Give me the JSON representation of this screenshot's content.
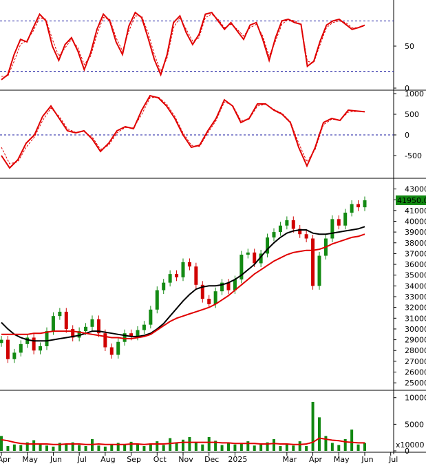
{
  "chart_data": [
    {
      "type": "line",
      "panel": "stochastic",
      "ylim": [
        0,
        100
      ],
      "yticks": [
        "50",
        "0"
      ],
      "reference_lines": [
        80,
        20
      ],
      "colors": {
        "main": "#e00000",
        "signal": "#e00000",
        "reference": "#1a1aa0"
      },
      "series": [
        {
          "style": "solid",
          "values": [
            10,
            16,
            40,
            58,
            55,
            72,
            88,
            80,
            50,
            33,
            52,
            60,
            44,
            22,
            42,
            70,
            88,
            80,
            55,
            40,
            74,
            90,
            84,
            60,
            34,
            16,
            40,
            78,
            86,
            66,
            52,
            64,
            88,
            90,
            80,
            70,
            78,
            68,
            58,
            75,
            78,
            58,
            33,
            60,
            80,
            82,
            78,
            76,
            26,
            32,
            56,
            75,
            80,
            82,
            76,
            70,
            72,
            75
          ]
        },
        {
          "style": "dashed",
          "values": [
            14,
            14,
            32,
            52,
            57,
            68,
            84,
            82,
            58,
            38,
            48,
            58,
            48,
            28,
            38,
            64,
            84,
            82,
            60,
            44,
            68,
            86,
            86,
            66,
            40,
            20,
            36,
            72,
            84,
            70,
            56,
            60,
            84,
            88,
            82,
            72,
            76,
            70,
            62,
            72,
            76,
            62,
            38,
            56,
            76,
            82,
            80,
            76,
            32,
            30,
            52,
            72,
            78,
            80,
            78,
            72,
            72,
            74
          ]
        }
      ]
    },
    {
      "type": "line",
      "panel": "oscillator",
      "ylim": [
        -1000,
        1000
      ],
      "yticks": [
        "1000",
        "500",
        "0",
        "-500"
      ],
      "reference_lines": [
        0
      ],
      "colors": {
        "main": "#e00000",
        "signal": "#e00000",
        "reference": "#1a1aa0"
      },
      "series": [
        {
          "style": "solid",
          "values": [
            -500,
            -800,
            -600,
            -200,
            0,
            450,
            700,
            400,
            100,
            50,
            100,
            -100,
            -400,
            -200,
            100,
            200,
            150,
            600,
            950,
            900,
            700,
            400,
            0,
            -300,
            -250,
            100,
            400,
            850,
            700,
            300,
            400,
            750,
            750,
            600,
            500,
            300,
            -300,
            -750,
            -300,
            300,
            400,
            350,
            600,
            580,
            560
          ]
        },
        {
          "style": "dashed",
          "values": [
            -300,
            -700,
            -650,
            -300,
            -50,
            350,
            650,
            450,
            150,
            60,
            80,
            -50,
            -350,
            -250,
            50,
            180,
            170,
            500,
            900,
            920,
            750,
            450,
            50,
            -250,
            -280,
            50,
            350,
            800,
            720,
            350,
            380,
            700,
            740,
            620,
            520,
            320,
            -200,
            -650,
            -350,
            250,
            380,
            360,
            550,
            570,
            565
          ]
        }
      ]
    },
    {
      "type": "candlestick",
      "panel": "price",
      "ylim": [
        24500,
        43800
      ],
      "yticks": [
        "43000",
        "42000",
        "41000",
        "40000",
        "39000",
        "38000",
        "37000",
        "36000",
        "35000",
        "34000",
        "33000",
        "32000",
        "31000",
        "30000",
        "29000",
        "28000",
        "27000",
        "26000",
        "25000"
      ],
      "last_price_label": "41950.00",
      "colors": {
        "up": "#138a13",
        "down": "#d00000",
        "ma_fast": "#000000",
        "ma_slow": "#e00000",
        "price_tag_bg": "#118811",
        "price_tag_text": "#ffffff"
      },
      "close": [
        29000,
        27200,
        27800,
        28600,
        29200,
        28000,
        28400,
        29800,
        31200,
        31600,
        30000,
        29200,
        29800,
        30200,
        30900,
        29600,
        28300,
        27600,
        28800,
        29600,
        29300,
        29900,
        30400,
        31800,
        33600,
        34300,
        35100,
        34800,
        36200,
        35800,
        34100,
        32800,
        32300,
        33500,
        34300,
        33600,
        34600,
        36900,
        37100,
        36100,
        37000,
        38500,
        39000,
        39600,
        40100,
        39300,
        38800,
        38400,
        34000,
        36800,
        38400,
        40200,
        39600,
        40800,
        41600,
        41300,
        41950
      ],
      "ma_fast": [
        30600,
        30000,
        29500,
        29200,
        29000,
        28900,
        28900,
        28900,
        29000,
        29100,
        29200,
        29300,
        29400,
        29600,
        29800,
        29800,
        29700,
        29600,
        29500,
        29400,
        29300,
        29300,
        29400,
        29600,
        30000,
        30500,
        31200,
        31900,
        32600,
        33200,
        33700,
        33900,
        34000,
        34000,
        34100,
        34300,
        34600,
        35000,
        35500,
        36000,
        36700,
        37400,
        38000,
        38500,
        38900,
        39100,
        39200,
        39200,
        38900,
        38800,
        38800,
        38900,
        39000,
        39100,
        39200,
        39300,
        39500
      ],
      "ma_slow": [
        29500,
        29500,
        29500,
        29500,
        29500,
        29600,
        29600,
        29700,
        29800,
        29800,
        29800,
        29800,
        29700,
        29600,
        29500,
        29400,
        29300,
        29200,
        29200,
        29100,
        29100,
        29200,
        29300,
        29500,
        29900,
        30300,
        30700,
        31000,
        31200,
        31400,
        31600,
        31800,
        32000,
        32300,
        32700,
        33100,
        33600,
        34100,
        34600,
        35100,
        35500,
        35900,
        36300,
        36600,
        36900,
        37100,
        37200,
        37300,
        37300,
        37400,
        37600,
        37900,
        38100,
        38300,
        38500,
        38600,
        38800
      ]
    },
    {
      "type": "bar",
      "panel": "volume",
      "ylim": [
        0,
        11000
      ],
      "yticks": [
        "10000",
        "5000",
        "0"
      ],
      "unit_label": "x10000",
      "colors": {
        "up": "#118811",
        "down": "#118811",
        "ma": "#e00000"
      },
      "values": [
        2800,
        900,
        1200,
        1100,
        1600,
        2000,
        1300,
        1000,
        800,
        1500,
        1200,
        1600,
        1100,
        900,
        2200,
        1000,
        800,
        1300,
        1500,
        1100,
        1700,
        1200,
        900,
        1400,
        1800,
        1100,
        2400,
        1600,
        2100,
        2600,
        1500,
        1200,
        2600,
        1900,
        1100,
        1600,
        1200,
        1500,
        1800,
        1000,
        1200,
        1600,
        2200,
        900,
        1300,
        1000,
        1800,
        900,
        9200,
        6300,
        2800,
        1500,
        1100,
        2200,
        4000,
        1200,
        1500
      ],
      "ma": [
        2100,
        1900,
        1600,
        1400,
        1300,
        1300,
        1300,
        1300,
        1200,
        1200,
        1300,
        1300,
        1300,
        1200,
        1200,
        1300,
        1200,
        1200,
        1200,
        1200,
        1300,
        1300,
        1200,
        1300,
        1300,
        1300,
        1400,
        1500,
        1600,
        1600,
        1600,
        1600,
        1600,
        1600,
        1500,
        1500,
        1400,
        1400,
        1400,
        1400,
        1300,
        1300,
        1400,
        1300,
        1300,
        1200,
        1200,
        1300,
        1600,
        2400,
        2200,
        2000,
        1900,
        1700,
        1600,
        1500,
        1500
      ]
    }
  ],
  "x_axis": {
    "labels": [
      {
        "text": "Apr",
        "month": 0
      },
      {
        "text": "May",
        "month": 1
      },
      {
        "text": "Jun",
        "month": 2
      },
      {
        "text": "Jul",
        "month": 3
      },
      {
        "text": "Aug",
        "month": 4
      },
      {
        "text": "Sep",
        "month": 5
      },
      {
        "text": "Oct",
        "month": 6
      },
      {
        "text": "Nov",
        "month": 7
      },
      {
        "text": "Dec",
        "month": 8
      },
      {
        "text": "2025",
        "month": 9
      },
      {
        "text": "Mar",
        "month": 11
      },
      {
        "text": "Apr",
        "month": 12
      },
      {
        "text": "May",
        "month": 13
      },
      {
        "text": "Jun",
        "month": 14
      },
      {
        "text": "Jul",
        "month": 15
      }
    ]
  }
}
